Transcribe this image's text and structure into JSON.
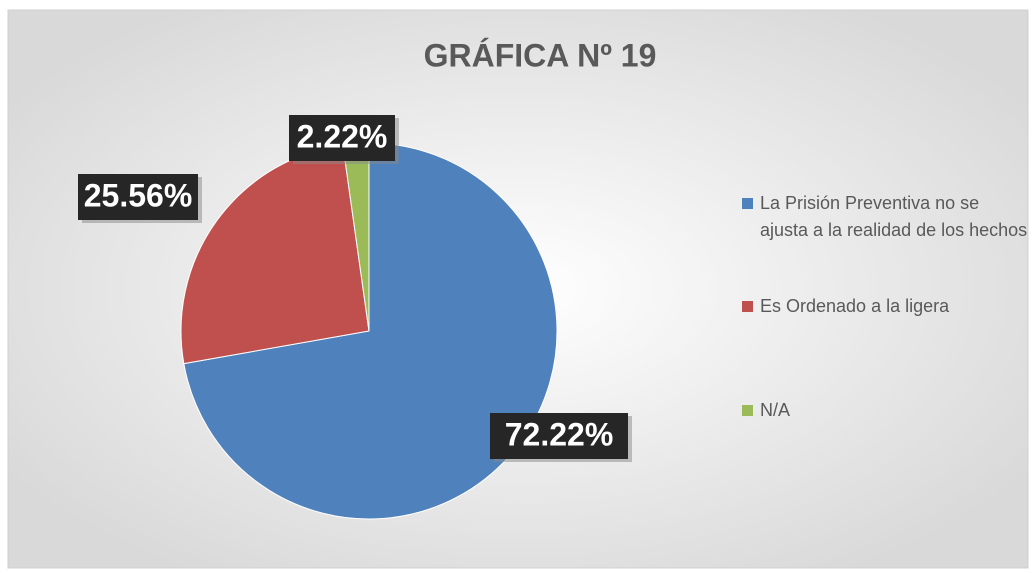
{
  "chart_data": {
    "type": "pie",
    "title": "GRÁFICA Nº 19",
    "categories": [
      "La Prisión Preventiva no se ajusta a la realidad de los hechos",
      "Es Ordenado a la ligera",
      "N/A"
    ],
    "values": [
      72.22,
      25.56,
      2.22
    ],
    "value_labels": [
      "72.22%",
      "25.56%",
      "2.22%"
    ],
    "colors": [
      "#4f81bd",
      "#c0504d",
      "#9bbb59"
    ],
    "legend": "right"
  }
}
